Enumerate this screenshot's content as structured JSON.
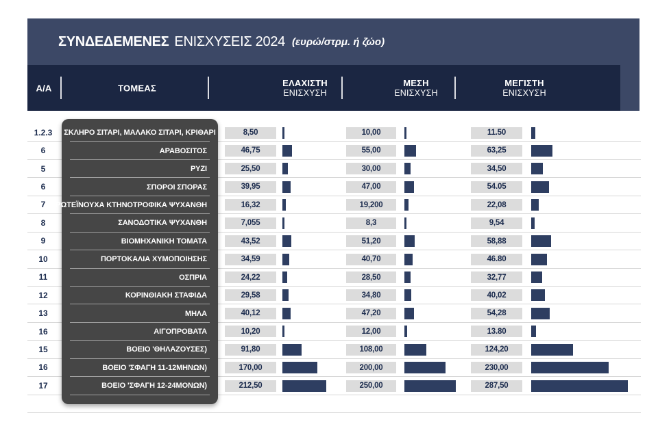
{
  "title": {
    "bold": "ΣΥΝΔΕΔΕΜΕΝΕΣ",
    "regular": "ΕΝΙΣΧΥΣΕΙΣ 2024",
    "unit": "(ευρώ/στρμ. ή ζώο)"
  },
  "columns": {
    "aa": "Α/Α",
    "sector": "ΤΟΜΕΑΣ",
    "min": [
      "ΕΛΑΧΙΣΤΗ",
      "ΕΝΙΣΧΥΣΗ"
    ],
    "avg": [
      "ΜΕΣΗ",
      "ΕΝΙΣΧΥΣΗ"
    ],
    "max": [
      "ΜΕΓΙΣΤΗ",
      "ΕΝΙΣΧΥΣΗ"
    ]
  },
  "colors": {
    "title_bar_bg": "#3c4866",
    "header_bg": "#1b2642",
    "sector_bg": "#464646",
    "value_box_bg": "#dcdcdc",
    "bar": "#2e3e61",
    "row_line": "#d6d6d6",
    "text_dark": "#1b2b4d",
    "text_light": "#ffffff"
  },
  "table": {
    "rows": [
      {
        "aa": "1.2.3",
        "sector": "ΣΚΛΗΡΟ ΣΙΤΑΡΙ, ΜΑΛΑΚΟ ΣΙΤΑΡΙ, ΚΡΙΘΑΡΙ",
        "min": "8,50",
        "avg": "10,00",
        "max": "11.50",
        "min_v": 8.5,
        "avg_v": 10,
        "max_v": 11.5
      },
      {
        "aa": "6",
        "sector": "ΑΡΑΒΟΣΙΤΟΣ",
        "min": "46,75",
        "avg": "55,00",
        "max": "63,25",
        "min_v": 46.75,
        "avg_v": 55,
        "max_v": 63.25
      },
      {
        "aa": "5",
        "sector": "ΡΥΖΙ",
        "min": "25,50",
        "avg": "30,00",
        "max": "34,50",
        "min_v": 25.5,
        "avg_v": 30,
        "max_v": 34.5
      },
      {
        "aa": "6",
        "sector": "ΣΠΟΡΟΙ ΣΠΟΡΑΣ",
        "min": "39,95",
        "avg": "47,00",
        "max": "54.05",
        "min_v": 39.95,
        "avg_v": 47,
        "max_v": 54.05
      },
      {
        "aa": "7",
        "sector": "ΠΡΩΤΕΪΝΟΥΧΑ ΚΤΗΝΟΤΡΟΦΙΚΑ ΨΥΧΑΝΘΗ",
        "min": "16,32",
        "avg": "19,200",
        "max": "22,08",
        "min_v": 16.32,
        "avg_v": 19.2,
        "max_v": 22.08
      },
      {
        "aa": "8",
        "sector": "ΣΑΝΟΔΟΤΙΚΑ ΨΥΧΑΝΘΗ",
        "min": "7,055",
        "avg": "8,3",
        "max": "9,54",
        "min_v": 7.055,
        "avg_v": 8.3,
        "max_v": 9.54
      },
      {
        "aa": "9",
        "sector": "ΒΙΟΜΗΧΑΝΙΚΗ ΤΟΜΑΤΑ",
        "min": "43,52",
        "avg": "51,20",
        "max": "58,88",
        "min_v": 43.52,
        "avg_v": 51.2,
        "max_v": 58.88
      },
      {
        "aa": "10",
        "sector": "ΠΟΡΤΟΚΑΛΙΑ ΧΥΜΟΠΟΙΗΣΗΣ",
        "min": "34,59",
        "avg": "40,70",
        "max": "46.80",
        "min_v": 34.59,
        "avg_v": 40.7,
        "max_v": 46.8
      },
      {
        "aa": "11",
        "sector": "ΟΣΠΡΙΑ",
        "min": "24,22",
        "avg": "28,50",
        "max": "32,77",
        "min_v": 24.22,
        "avg_v": 28.5,
        "max_v": 32.77
      },
      {
        "aa": "12",
        "sector": "ΚΟΡΙΝΘΙΑΚΗ ΣΤΑΦΙΔΑ",
        "min": "29,58",
        "avg": "34,80",
        "max": "40,02",
        "min_v": 29.58,
        "avg_v": 34.8,
        "max_v": 40.02
      },
      {
        "aa": "13",
        "sector": "ΜΗΛΑ",
        "min": "40,12",
        "avg": "47,20",
        "max": "54,28",
        "min_v": 40.12,
        "avg_v": 47.2,
        "max_v": 54.28
      },
      {
        "aa": "16",
        "sector": "ΑΙΓΟΠΡΟΒΑΤΑ",
        "min": "10,20",
        "avg": "12,00",
        "max": "13.80",
        "min_v": 10.2,
        "avg_v": 12,
        "max_v": 13.8
      },
      {
        "aa": "15",
        "sector": "ΒΟΕΙΟ 'ΘΗΛΑΖΟΥΣΕΣ)",
        "min": "91,80",
        "avg": "108,00",
        "max": "124,20",
        "min_v": 91.8,
        "avg_v": 108,
        "max_v": 124.2
      },
      {
        "aa": "16",
        "sector": "ΒΟΕΙΟ 'ΣΦΑΓΗ 11-12ΜΗΝΩΝ)",
        "min": "170,00",
        "avg": "200,00",
        "max": "230,00",
        "min_v": 170,
        "avg_v": 200,
        "max_v": 230
      },
      {
        "aa": "17",
        "sector": "ΒΟΕΙΟ 'ΣΦΑΓΗ 12-24ΜΟΝΩΝ)",
        "min": "212,50",
        "avg": "250,00",
        "max": "287,50",
        "min_v": 212.5,
        "avg_v": 250,
        "max_v": 287.5
      }
    ]
  },
  "chart_data": {
    "type": "table",
    "title": "ΣΥΝΔΕΔΕΜΕΝΕΣ ΕΝΙΣΧΥΣΕΙΣ 2024 (ευρώ/στρμ. ή ζώο)",
    "categories": [
      "ΣΚΛΗΡΟ ΣΙΤΑΡΙ, ΜΑΛΑΚΟ ΣΙΤΑΡΙ, ΚΡΙΘΑΡΙ",
      "ΑΡΑΒΟΣΙΤΟΣ",
      "ΡΥΖΙ",
      "ΣΠΟΡΟΙ ΣΠΟΡΑΣ",
      "ΠΡΩΤΕΪΝΟΥΧΑ ΚΤΗΝΟΤΡΟΦΙΚΑ ΨΥΧΑΝΘΗ",
      "ΣΑΝΟΔΟΤΙΚΑ ΨΥΧΑΝΘΗ",
      "ΒΙΟΜΗΧΑΝΙΚΗ ΤΟΜΑΤΑ",
      "ΠΟΡΤΟΚΑΛΙΑ ΧΥΜΟΠΟΙΗΣΗΣ",
      "ΟΣΠΡΙΑ",
      "ΚΟΡΙΝΘΙΑΚΗ ΣΤΑΦΙΔΑ",
      "ΜΗΛΑ",
      "ΑΙΓΟΠΡΟΒΑΤΑ",
      "ΒΟΕΙΟ 'ΘΗΛΑΖΟΥΣΕΣ)",
      "ΒΟΕΙΟ 'ΣΦΑΓΗ 11-12ΜΗΝΩΝ)",
      "ΒΟΕΙΟ 'ΣΦΑΓΗ 12-24ΜΟΝΩΝ)"
    ],
    "row_ids": [
      "1.2.3",
      "6",
      "5",
      "6",
      "7",
      "8",
      "9",
      "10",
      "11",
      "12",
      "13",
      "16",
      "15",
      "16",
      "17"
    ],
    "series": [
      {
        "name": "ΕΛΑΧΙΣΤΗ ΕΝΙΣΧΥΣΗ",
        "values": [
          8.5,
          46.75,
          25.5,
          39.95,
          16.32,
          7.055,
          43.52,
          34.59,
          24.22,
          29.58,
          40.12,
          10.2,
          91.8,
          170,
          212.5
        ]
      },
      {
        "name": "ΜΕΣΗ ΕΝΙΣΧΥΣΗ",
        "values": [
          10,
          55,
          30,
          47,
          19.2,
          8.3,
          51.2,
          40.7,
          28.5,
          34.8,
          47.2,
          12,
          108,
          200,
          250
        ]
      },
      {
        "name": "ΜΕΓΙΣΤΗ ΕΝΙΣΧΥΣΗ",
        "values": [
          11.5,
          63.25,
          34.5,
          54.05,
          22.08,
          9.54,
          58.88,
          46.8,
          32.77,
          40.02,
          54.28,
          13.8,
          124.2,
          230,
          287.5
        ]
      }
    ],
    "legend_position": "none",
    "grid": false
  }
}
